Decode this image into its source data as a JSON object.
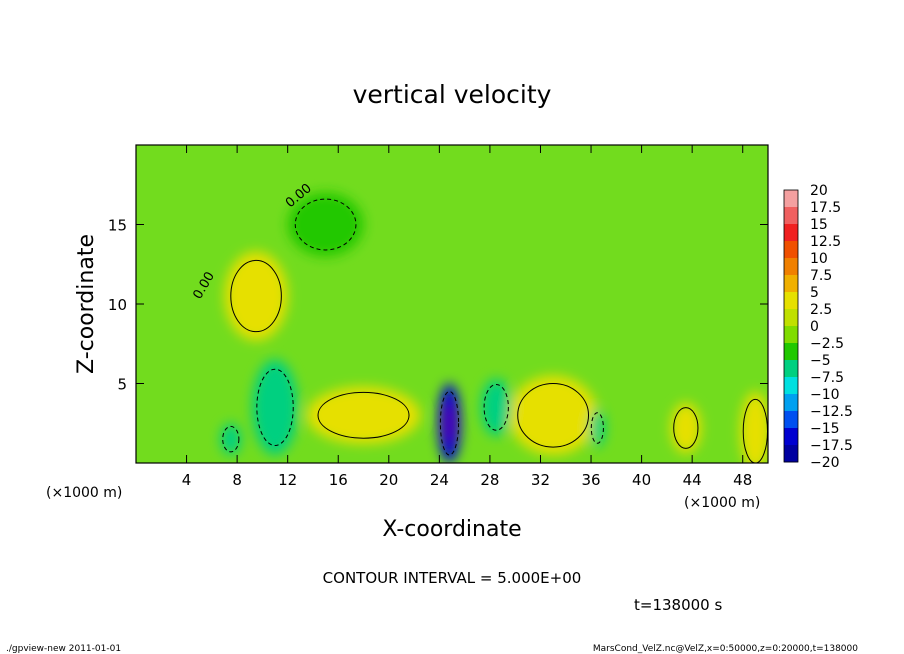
{
  "chart_data": {
    "type": "heatmap",
    "title": "vertical velocity",
    "xlabel": "X-coordinate",
    "ylabel": "Z-coordinate",
    "x_unit": "(×1000 m)",
    "z_unit": "(×1000 m)",
    "xlim": [
      0,
      50
    ],
    "zlim": [
      0,
      20
    ],
    "x_ticks": [
      4,
      8,
      12,
      16,
      20,
      24,
      28,
      32,
      36,
      40,
      44,
      48
    ],
    "z_ticks": [
      5,
      10,
      15
    ],
    "contour_label": "0.00",
    "contour_interval_text": "CONTOUR INTERVAL = 5.000E+00",
    "time_text": "t=138000 s",
    "colorbar": {
      "levels": [
        "20",
        "17.5",
        "15",
        "12.5",
        "10",
        "7.5",
        "5",
        "2.5",
        "0",
        "−2.5",
        "−5",
        "−7.5",
        "−10",
        "−12.5",
        "−15",
        "−17.5",
        "−20"
      ],
      "colors": [
        "#f4a0a0",
        "#f06060",
        "#f02020",
        "#f05000",
        "#f08000",
        "#f0b000",
        "#e6e000",
        "#c0e000",
        "#80dc00",
        "#20c800",
        "#00d080",
        "#00e0e0",
        "#00a0f0",
        "#0050f0",
        "#0000d0",
        "#0000a0",
        "#5000b0"
      ]
    },
    "features": [
      {
        "x": 18.0,
        "z": 3.0,
        "rx": 4.5,
        "rz": 1.8,
        "value": 6
      },
      {
        "x": 9.5,
        "z": 10.5,
        "rx": 2.5,
        "rz": 2.8,
        "value": 4
      },
      {
        "x": 33.0,
        "z": 3.0,
        "rx": 3.5,
        "rz": 2.5,
        "value": 6
      },
      {
        "x": 43.5,
        "z": 2.2,
        "rx": 1.2,
        "rz": 1.6,
        "value": 5
      },
      {
        "x": 49.0,
        "z": 2.0,
        "rx": 1.2,
        "rz": 2.5,
        "value": 6
      },
      {
        "x": 11.0,
        "z": 3.5,
        "rx": 1.8,
        "rz": 3.0,
        "value": -6
      },
      {
        "x": 7.5,
        "z": 1.5,
        "rx": 0.8,
        "rz": 1.0,
        "value": -5
      },
      {
        "x": 24.8,
        "z": 2.5,
        "rx": 0.9,
        "rz": 2.5,
        "value": -15
      },
      {
        "x": 28.5,
        "z": 3.5,
        "rx": 1.2,
        "rz": 1.8,
        "value": -6
      },
      {
        "x": 36.5,
        "z": 2.2,
        "rx": 0.6,
        "rz": 1.2,
        "value": -5
      },
      {
        "x": 15.0,
        "z": 15.0,
        "rx": 3.0,
        "rz": 2.0,
        "value": -2
      }
    ]
  },
  "footer": {
    "left": "./gpview-new  2011-01-01",
    "right": "MarsCond_VelZ.nc@VelZ,x=0:50000,z=0:20000,t=138000"
  }
}
